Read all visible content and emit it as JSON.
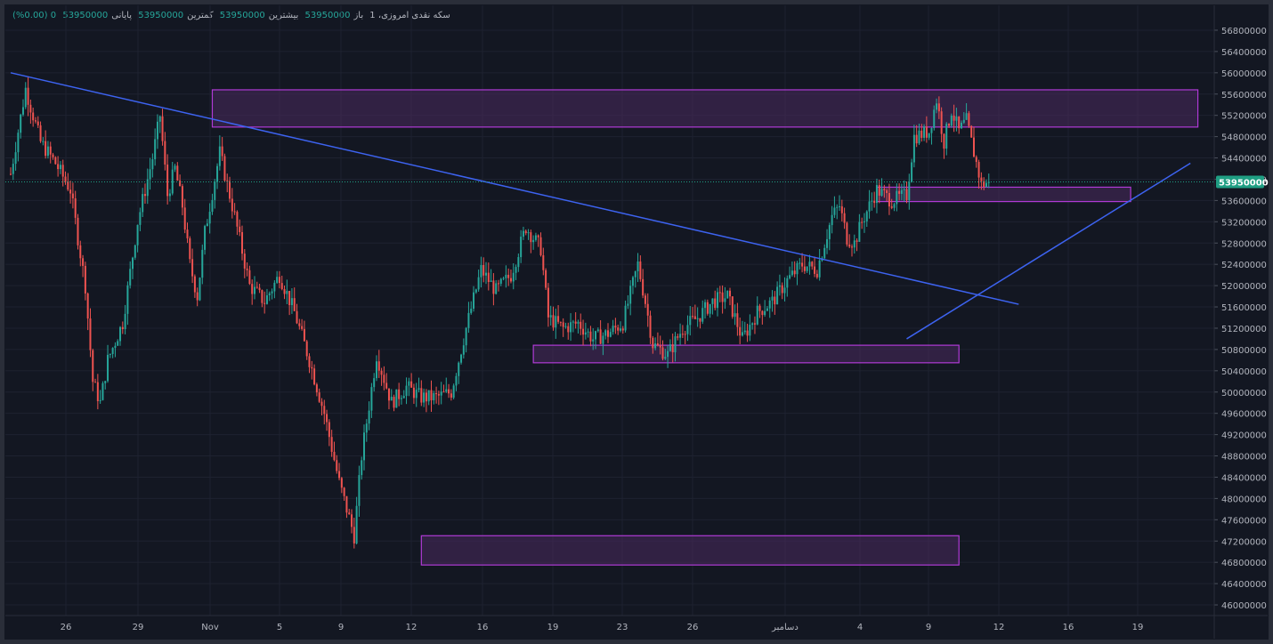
{
  "legend": {
    "symbol": "سکه نقدی امروزی، 1",
    "open_label": "باز",
    "open": "53950000",
    "high_label": "بیشترین",
    "high": "53950000",
    "low_label": "کمترین",
    "low": "53950000",
    "close_label": "پایانی",
    "close": "53950000",
    "change": "0 (0.00%)"
  },
  "chart_data": {
    "type": "candlestick",
    "last_price": 53950000,
    "last_price_label": "53950000",
    "ylim": [
      45800000,
      57000000
    ],
    "y_ticks": [
      46000000,
      46400000,
      46800000,
      47200000,
      47600000,
      48000000,
      48400000,
      48800000,
      49200000,
      49600000,
      50000000,
      50400000,
      50800000,
      51200000,
      51600000,
      52000000,
      52400000,
      52800000,
      53200000,
      53600000,
      54000000,
      54400000,
      54800000,
      55200000,
      55600000,
      56000000,
      56400000,
      56800000
    ],
    "y_tick_labels": [
      "46000000",
      "46400000",
      "46800000",
      "47200000",
      "47600000",
      "48000000",
      "48400000",
      "48800000",
      "49200000",
      "49600000",
      "50000000",
      "50400000",
      "50800000",
      "51200000",
      "51600000",
      "52000000",
      "52400000",
      "52800000",
      "53200000",
      "53600000",
      "54000000",
      "54400000",
      "54800000",
      "55200000",
      "55600000",
      "56000000",
      "56400000",
      "56800000"
    ],
    "x_ticks": [
      "26",
      "29",
      "Nov",
      "5",
      "9",
      "12",
      "16",
      "19",
      "23",
      "26",
      "دسامبر",
      "4",
      "9",
      "12",
      "16",
      "19"
    ],
    "price_path": [
      [
        0,
        54100000
      ],
      [
        2,
        55700000
      ],
      [
        4,
        54700000
      ],
      [
        6,
        54300000
      ],
      [
        8,
        53800000
      ],
      [
        10,
        52000000
      ],
      [
        11,
        50200000
      ],
      [
        12,
        49800000
      ],
      [
        13,
        50600000
      ],
      [
        15,
        51300000
      ],
      [
        17,
        53200000
      ],
      [
        19,
        54400000
      ],
      [
        20,
        55200000
      ],
      [
        21,
        53700000
      ],
      [
        22,
        54200000
      ],
      [
        23,
        53500000
      ],
      [
        24,
        52400000
      ],
      [
        25,
        51800000
      ],
      [
        26,
        53000000
      ],
      [
        28,
        54500000
      ],
      [
        30,
        53300000
      ],
      [
        32,
        52000000
      ],
      [
        34,
        51700000
      ],
      [
        36,
        52200000
      ],
      [
        38,
        51500000
      ],
      [
        40,
        50600000
      ],
      [
        42,
        49600000
      ],
      [
        44,
        48300000
      ],
      [
        46,
        47300000
      ],
      [
        47,
        48800000
      ],
      [
        49,
        50700000
      ],
      [
        51,
        49800000
      ],
      [
        53,
        50100000
      ],
      [
        55,
        49900000
      ],
      [
        57,
        49900000
      ],
      [
        59,
        50000000
      ],
      [
        61,
        51200000
      ],
      [
        63,
        52300000
      ],
      [
        65,
        51900000
      ],
      [
        67,
        52200000
      ],
      [
        69,
        53100000
      ],
      [
        71,
        52700000
      ],
      [
        72,
        51400000
      ],
      [
        74,
        51200000
      ],
      [
        76,
        51300000
      ],
      [
        78,
        51000000
      ],
      [
        80,
        51100000
      ],
      [
        82,
        51300000
      ],
      [
        84,
        52400000
      ],
      [
        85,
        51700000
      ],
      [
        86,
        50900000
      ],
      [
        88,
        50700000
      ],
      [
        90,
        51200000
      ],
      [
        92,
        51400000
      ],
      [
        94,
        51700000
      ],
      [
        96,
        51800000
      ],
      [
        98,
        51000000
      ],
      [
        100,
        51500000
      ],
      [
        102,
        51700000
      ],
      [
        104,
        52100000
      ],
      [
        106,
        52400000
      ],
      [
        108,
        52300000
      ],
      [
        110,
        53300000
      ],
      [
        111,
        53500000
      ],
      [
        112,
        52900000
      ],
      [
        113,
        52800000
      ],
      [
        114,
        53200000
      ],
      [
        116,
        53800000
      ],
      [
        118,
        53600000
      ],
      [
        120,
        53700000
      ],
      [
        121,
        54800000
      ],
      [
        123,
        54900000
      ],
      [
        124,
        55500000
      ],
      [
        125,
        54700000
      ],
      [
        126,
        55300000
      ],
      [
        127,
        54900000
      ],
      [
        128,
        55100000
      ],
      [
        129,
        54500000
      ],
      [
        130,
        53900000
      ],
      [
        131,
        53950000
      ]
    ],
    "zones": [
      {
        "x0": 27,
        "x1": 159,
        "y0": 54980000,
        "y1": 55680000
      },
      {
        "x0": 116,
        "x1": 150,
        "y0": 53580000,
        "y1": 53850000
      },
      {
        "x0": 70,
        "x1": 127,
        "y0": 50550000,
        "y1": 50880000
      },
      {
        "x0": 55,
        "x1": 127,
        "y0": 46750000,
        "y1": 47300000
      }
    ],
    "trendlines": [
      {
        "x0": 0,
        "y0": 56000000,
        "x1": 135,
        "y1": 51650000
      },
      {
        "x0": 120,
        "y0": 51000000,
        "x1": 158,
        "y1": 54300000
      }
    ],
    "colors": {
      "up": "#26a69a",
      "down": "#ef5350",
      "zone_fill": "#4a2a5e",
      "zone_stroke": "#b03ad6",
      "trendline": "#3d63f0",
      "last_price_bg": "#1f9e83",
      "grid": "#1e2230"
    }
  }
}
